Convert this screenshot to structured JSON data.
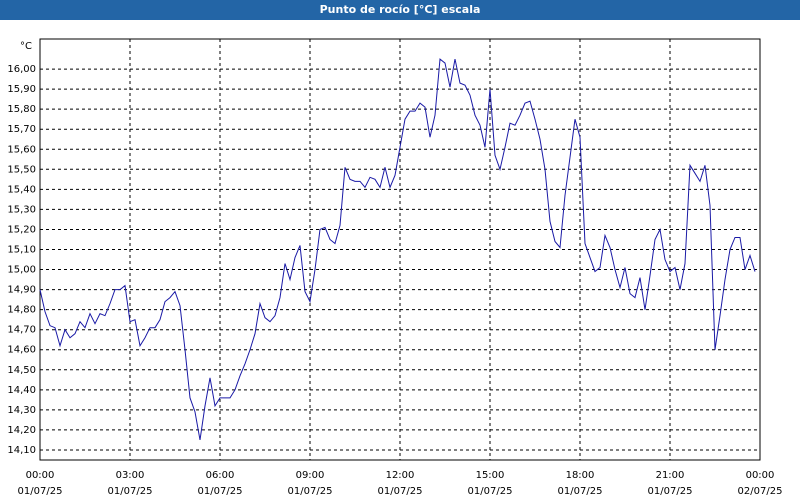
{
  "window_title": "Punto de rocío [°C] escala",
  "chart_data": {
    "type": "line",
    "y_unit": "°C",
    "x": [
      0,
      10,
      20,
      30,
      40,
      50,
      60,
      70,
      80,
      90,
      100,
      110,
      120,
      130,
      140,
      150,
      160,
      170,
      180,
      190,
      200,
      210,
      220,
      230,
      240,
      250,
      260,
      270,
      280,
      290,
      300,
      310,
      320,
      330,
      340,
      350,
      360,
      370,
      380,
      390,
      400,
      410,
      420,
      430,
      440,
      450,
      460,
      470,
      480,
      490,
      500,
      510,
      520,
      530,
      540,
      550,
      560,
      570,
      580,
      590,
      600,
      610,
      620,
      630,
      640,
      650,
      660,
      670,
      680,
      690,
      700,
      710,
      720,
      730,
      740,
      750,
      760,
      770,
      780,
      790,
      800,
      810,
      820,
      830,
      840,
      850,
      860,
      870,
      880,
      890,
      900,
      910,
      920,
      930,
      940,
      950,
      960,
      970,
      980,
      990,
      1000,
      1010,
      1020,
      1030,
      1040,
      1050,
      1060,
      1070,
      1080,
      1090,
      1100,
      1110,
      1120,
      1130,
      1140,
      1150,
      1160,
      1170,
      1180,
      1190,
      1200,
      1210,
      1220,
      1230,
      1240,
      1250,
      1260,
      1270,
      1280,
      1290,
      1300,
      1310,
      1320,
      1330,
      1340,
      1350,
      1360,
      1370,
      1380,
      1390,
      1400,
      1410,
      1420,
      1430
    ],
    "series": [
      {
        "color": "#1a1aa6",
        "values": [
          14.9,
          14.79,
          14.72,
          14.71,
          14.62,
          14.7,
          14.66,
          14.68,
          14.74,
          14.71,
          14.78,
          14.73,
          14.78,
          14.77,
          14.83,
          14.9,
          14.9,
          14.92,
          14.74,
          14.75,
          14.62,
          14.66,
          14.71,
          14.71,
          14.75,
          14.84,
          14.86,
          14.89,
          14.82,
          14.6,
          14.36,
          14.29,
          14.15,
          14.32,
          14.46,
          14.32,
          14.36,
          14.36,
          14.36,
          14.4,
          14.47,
          14.53,
          14.6,
          14.68,
          14.83,
          14.76,
          14.74,
          14.77,
          14.86,
          15.03,
          14.95,
          15.06,
          15.12,
          14.89,
          14.84,
          15.0,
          15.2,
          15.21,
          15.15,
          15.13,
          15.22,
          15.51,
          15.45,
          15.44,
          15.44,
          15.41,
          15.46,
          15.45,
          15.41,
          15.51,
          15.41,
          15.47,
          15.61,
          15.75,
          15.79,
          15.79,
          15.83,
          15.81,
          15.66,
          15.77,
          16.05,
          16.03,
          15.91,
          16.05,
          15.93,
          15.92,
          15.87,
          15.77,
          15.72,
          15.61,
          15.9,
          15.57,
          15.5,
          15.61,
          15.73,
          15.72,
          15.77,
          15.83,
          15.84,
          15.75,
          15.65,
          15.5,
          15.24,
          15.14,
          15.11,
          15.37,
          15.56,
          15.75,
          15.66,
          15.13,
          15.06,
          14.99,
          15.01,
          15.17,
          15.11,
          15.0,
          14.91,
          15.01,
          14.88,
          14.86,
          14.96,
          14.8,
          14.97,
          15.15,
          15.2,
          15.05,
          14.99,
          15.01,
          14.9,
          15.03,
          15.52,
          15.48,
          15.44,
          15.52,
          15.32,
          14.6,
          14.77,
          14.95,
          15.1,
          15.16,
          15.16,
          15.0,
          15.07,
          14.99
        ]
      }
    ],
    "xlim": [
      0,
      1440
    ],
    "xticks": [
      {
        "value": 0,
        "label": "00:00"
      },
      {
        "value": 180,
        "label": "03:00"
      },
      {
        "value": 360,
        "label": "06:00"
      },
      {
        "value": 540,
        "label": "09:00"
      },
      {
        "value": 720,
        "label": "12:00"
      },
      {
        "value": 900,
        "label": "15:00"
      },
      {
        "value": 1080,
        "label": "18:00"
      },
      {
        "value": 1260,
        "label": "21:00"
      },
      {
        "value": 1440,
        "label": "00:00"
      }
    ],
    "xtick_dates": [
      "01/07/25",
      "01/07/25",
      "01/07/25",
      "01/07/25",
      "01/07/25",
      "01/07/25",
      "01/07/25",
      "01/07/25",
      "02/07/25"
    ],
    "ylim": [
      14.05,
      16.15
    ],
    "yticks": [
      {
        "value": 14.1,
        "label": "14,10"
      },
      {
        "value": 14.2,
        "label": "14,20"
      },
      {
        "value": 14.3,
        "label": "14,30"
      },
      {
        "value": 14.4,
        "label": "14,40"
      },
      {
        "value": 14.5,
        "label": "14,50"
      },
      {
        "value": 14.6,
        "label": "14,60"
      },
      {
        "value": 14.7,
        "label": "14,70"
      },
      {
        "value": 14.8,
        "label": "14,80"
      },
      {
        "value": 14.9,
        "label": "14,90"
      },
      {
        "value": 15.0,
        "label": "15,00"
      },
      {
        "value": 15.1,
        "label": "15,10"
      },
      {
        "value": 15.2,
        "label": "15,20"
      },
      {
        "value": 15.3,
        "label": "15,30"
      },
      {
        "value": 15.4,
        "label": "15,40"
      },
      {
        "value": 15.5,
        "label": "15,50"
      },
      {
        "value": 15.6,
        "label": "15,60"
      },
      {
        "value": 15.7,
        "label": "15,70"
      },
      {
        "value": 15.8,
        "label": "15,80"
      },
      {
        "value": 15.9,
        "label": "15,90"
      },
      {
        "value": 16.0,
        "label": "16,00"
      }
    ],
    "grid": true
  }
}
